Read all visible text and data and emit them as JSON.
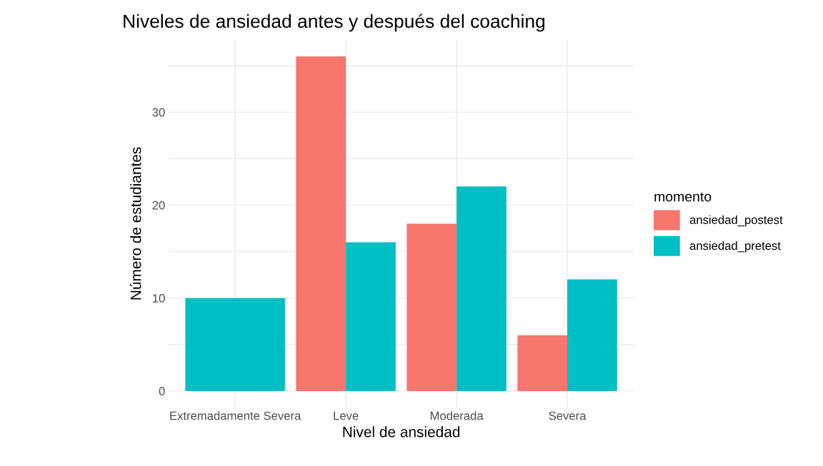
{
  "chart_data": {
    "type": "bar",
    "title": "Niveles de ansiedad antes y después del coaching",
    "xlabel": "Nivel de ansiedad",
    "ylabel": "Número de estudiantes",
    "legend_title": "momento",
    "categories": [
      "Extremadamente Severa",
      "Leve",
      "Moderada",
      "Severa"
    ],
    "series": [
      {
        "name": "ansiedad_postest",
        "color": "#f8766d",
        "values": [
          null,
          36,
          18,
          6
        ]
      },
      {
        "name": "ansiedad_pretest",
        "color": "#00bfc4",
        "values": [
          10,
          16,
          22,
          12
        ]
      }
    ],
    "ylim": [
      -1.8,
      37.8
    ],
    "yticks": [
      0,
      {
        "value": 5,
        "label": null
      },
      10,
      {
        "value": 15,
        "label": null
      },
      20,
      {
        "value": 25,
        "label": null
      },
      30,
      {
        "value": 35,
        "label": null
      }
    ],
    "grid": true,
    "legend": "right"
  }
}
